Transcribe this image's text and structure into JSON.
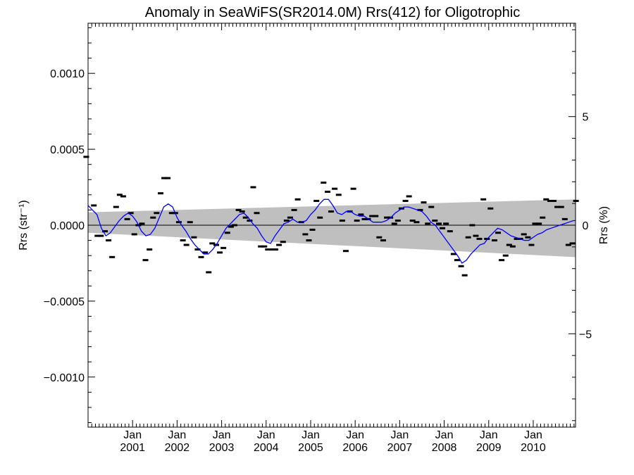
{
  "chart_data": {
    "type": "scatter",
    "title": "Anomaly in SeaWiFS(SR2014.0M) Rrs(412) for Oligotrophic",
    "ylabel_left": "Rrs (str⁻¹)",
    "ylabel_right": "Rrs (%)",
    "xlim": [
      2000.0,
      2010.95
    ],
    "ylim": [
      -0.00133,
      0.00133
    ],
    "ylim_right": [
      -9.3,
      9.3
    ],
    "yticks_left": [
      {
        "value": 0.001,
        "label": "0.0010"
      },
      {
        "value": 0.0005,
        "label": "0.0005"
      },
      {
        "value": 0.0,
        "label": "0.0000"
      },
      {
        "value": -0.0005,
        "label": "−0.0005"
      },
      {
        "value": -0.001,
        "label": "−0.0010"
      }
    ],
    "yticks_right": [
      {
        "value": 5,
        "label": "5"
      },
      {
        "value": 0,
        "label": "0"
      },
      {
        "value": -5,
        "label": "−5"
      }
    ],
    "xticks": [
      {
        "value": 2001,
        "label": "Jan",
        "year": "2001"
      },
      {
        "value": 2002,
        "label": "Jan",
        "year": "2002"
      },
      {
        "value": 2003,
        "label": "Jan",
        "year": "2003"
      },
      {
        "value": 2004,
        "label": "Jan",
        "year": "2004"
      },
      {
        "value": 2005,
        "label": "Jan",
        "year": "2005"
      },
      {
        "value": 2006,
        "label": "Jan",
        "year": "2006"
      },
      {
        "value": 2007,
        "label": "Jan",
        "year": "2007"
      },
      {
        "value": 2008,
        "label": "Jan",
        "year": "2008"
      },
      {
        "value": 2009,
        "label": "Jan",
        "year": "2009"
      },
      {
        "value": 2010,
        "label": "Jan",
        "year": "2010"
      }
    ],
    "zero_line": 0.0,
    "uncertainty_band": {
      "color": "#bfbfbf",
      "upper": [
        [
          2000.0,
          8.5e-05
        ],
        [
          2010.95,
          0.00017
        ]
      ],
      "lower": [
        [
          2000.0,
          -5e-05
        ],
        [
          2010.95,
          -0.00021
        ]
      ]
    },
    "series": [
      {
        "kind": "monthly_anomaly",
        "marker": "dash",
        "color": "#000000",
        "x": [
          1999.96,
          2000.13,
          2000.21,
          2000.29,
          2000.38,
          2000.46,
          2000.54,
          2000.63,
          2000.71,
          2000.79,
          2000.88,
          2000.96,
          2001.04,
          2001.13,
          2001.21,
          2001.29,
          2001.38,
          2001.46,
          2001.54,
          2001.63,
          2001.71,
          2001.79,
          2001.88,
          2001.96,
          2002.04,
          2002.13,
          2002.21,
          2002.29,
          2002.38,
          2002.46,
          2002.54,
          2002.63,
          2002.71,
          2002.79,
          2002.88,
          2002.96,
          2003.04,
          2003.13,
          2003.21,
          2003.29,
          2003.38,
          2003.46,
          2003.54,
          2003.63,
          2003.71,
          2003.79,
          2003.88,
          2003.96,
          2004.04,
          2004.13,
          2004.21,
          2004.29,
          2004.38,
          2004.46,
          2004.54,
          2004.63,
          2004.71,
          2004.79,
          2004.88,
          2004.96,
          2005.04,
          2005.13,
          2005.21,
          2005.29,
          2005.38,
          2005.46,
          2005.54,
          2005.63,
          2005.71,
          2005.79,
          2005.88,
          2005.96,
          2006.04,
          2006.13,
          2006.21,
          2006.29,
          2006.38,
          2006.46,
          2006.54,
          2006.63,
          2006.71,
          2006.79,
          2006.88,
          2006.96,
          2007.04,
          2007.13,
          2007.21,
          2007.29,
          2007.38,
          2007.46,
          2007.54,
          2007.63,
          2007.71,
          2007.79,
          2007.88,
          2007.96,
          2008.04,
          2008.13,
          2008.21,
          2008.29,
          2008.38,
          2008.46,
          2008.54,
          2008.63,
          2008.71,
          2008.79,
          2008.88,
          2008.96,
          2009.04,
          2009.13,
          2009.21,
          2009.29,
          2009.38,
          2009.46,
          2009.54,
          2009.63,
          2009.71,
          2009.79,
          2009.88,
          2009.96,
          2010.04,
          2010.13,
          2010.21,
          2010.29,
          2010.38,
          2010.46,
          2010.54,
          2010.63,
          2010.71,
          2010.79,
          2010.88,
          2010.96
        ],
        "y": [
          0.00045,
          0.00013,
          -7e-05,
          -7e-05,
          -4e-05,
          -0.0001,
          -0.00021,
          0.00012,
          0.0002,
          0.00019,
          4e-05,
          8e-05,
          -6e-05,
          0.0,
          1e-05,
          -0.00023,
          -0.00016,
          5e-05,
          8e-05,
          0.00021,
          0.00031,
          0.00031,
          8e-05,
          8e-05,
          2e-05,
          -0.0001,
          -0.00013,
          2e-05,
          -8e-05,
          -0.00016,
          -0.00021,
          -0.00018,
          -0.00031,
          -0.00012,
          -0.00013,
          -0.00018,
          -0.00015,
          -5e-05,
          -1e-05,
          0.0,
          0.0001,
          9e-05,
          5e-05,
          3e-05,
          0.00025,
          8e-05,
          -0.00014,
          -0.00014,
          -0.00016,
          -0.00016,
          -0.00016,
          -0.00013,
          -0.00011,
          3e-05,
          5e-05,
          0.0001,
          0.00017,
          2e-05,
          -6e-05,
          -0.0001,
          -3e-05,
          0.00016,
          5e-05,
          0.00028,
          0.00022,
          9e-05,
          0.00024,
          0.0002,
          3e-05,
          -0.00017,
          9e-05,
          0.00024,
          3e-05,
          7e-05,
          4e-05,
          4e-05,
          6e-05,
          6e-05,
          -8e-05,
          -0.0001,
          5e-05,
          5e-05,
          1e-05,
          3e-05,
          0.00011,
          0.00016,
          0.00019,
          3e-05,
          2e-05,
          0.0001,
          0.00015,
          1e-05,
          0.00012,
          3e-05,
          1e-05,
          -2e-05,
          1e-05,
          -4e-05,
          -0.00019,
          -0.00023,
          -0.00027,
          -0.00033,
          -8e-05,
          0.0,
          -7e-05,
          -9e-05,
          0.00017,
          -9e-05,
          0.00011,
          -0.0001,
          -5e-05,
          -0.00023,
          -0.0002,
          -0.00013,
          -0.00014,
          -9e-05,
          -9e-05,
          -6e-05,
          -8e-05,
          -0.00013,
          1e-05,
          1e-05,
          5e-05,
          0.00017,
          0.00016,
          0.00016,
          0.00012,
          0.00012,
          4e-05,
          -0.00013,
          -0.00012,
          0.00016
        ]
      },
      {
        "kind": "smoothed",
        "color": "#0000ff",
        "x": [
          2000.0,
          2000.1,
          2000.2,
          2000.3,
          2000.4,
          2000.5,
          2000.6,
          2000.7,
          2000.8,
          2000.9,
          2001.0,
          2001.1,
          2001.2,
          2001.3,
          2001.4,
          2001.5,
          2001.6,
          2001.7,
          2001.8,
          2001.9,
          2002.0,
          2002.1,
          2002.2,
          2002.3,
          2002.4,
          2002.5,
          2002.6,
          2002.7,
          2002.8,
          2002.9,
          2003.0,
          2003.1,
          2003.2,
          2003.3,
          2003.4,
          2003.5,
          2003.6,
          2003.7,
          2003.8,
          2003.9,
          2004.0,
          2004.1,
          2004.2,
          2004.3,
          2004.4,
          2004.5,
          2004.6,
          2004.7,
          2004.8,
          2004.9,
          2005.0,
          2005.1,
          2005.2,
          2005.3,
          2005.4,
          2005.5,
          2005.6,
          2005.7,
          2005.8,
          2005.9,
          2006.0,
          2006.1,
          2006.2,
          2006.3,
          2006.4,
          2006.5,
          2006.6,
          2006.7,
          2006.8,
          2006.9,
          2007.0,
          2007.1,
          2007.2,
          2007.3,
          2007.4,
          2007.5,
          2007.6,
          2007.7,
          2007.8,
          2007.9,
          2008.0,
          2008.1,
          2008.2,
          2008.3,
          2008.4,
          2008.5,
          2008.6,
          2008.7,
          2008.8,
          2008.9,
          2009.0,
          2009.1,
          2009.2,
          2009.3,
          2009.4,
          2009.5,
          2009.6,
          2009.7,
          2009.8,
          2009.9,
          2010.0,
          2010.1,
          2010.2,
          2010.3,
          2010.4,
          2010.5,
          2010.6,
          2010.7,
          2010.8,
          2010.9,
          2010.95
        ],
        "y": [
          0.00013,
          0.0001,
          7e-05,
          -2e-05,
          -7e-05,
          -5e-05,
          -1e-05,
          3e-05,
          6e-05,
          8e-05,
          6e-05,
          2e-05,
          -4e-05,
          -7e-05,
          -6e-05,
          -2e-05,
          5e-05,
          0.00012,
          0.00014,
          0.00012,
          5e-05,
          0.0,
          -4e-05,
          -9e-05,
          -0.00013,
          -0.00016,
          -0.00019,
          -0.00019,
          -0.00016,
          -0.00012,
          -7e-05,
          -2e-05,
          1e-05,
          4e-05,
          7e-05,
          8e-05,
          5e-05,
          1e-05,
          -2e-05,
          -7e-05,
          -0.00011,
          -0.00012,
          -7e-05,
          -3e-05,
          1e-05,
          2e-05,
          4e-05,
          2e-05,
          2e-05,
          3e-05,
          7e-05,
          0.0001,
          0.00014,
          0.00017,
          0.00017,
          0.00013,
          8e-05,
          7e-05,
          9e-05,
          9e-05,
          7e-05,
          6e-05,
          6e-05,
          4e-05,
          2e-05,
          2e-05,
          2e-05,
          3e-05,
          5e-05,
          8e-05,
          0.0001,
          0.00012,
          0.00012,
          0.00011,
          0.0001,
          9e-05,
          6e-05,
          2e-05,
          0.0,
          -4e-05,
          -8e-05,
          -0.00012,
          -0.00016,
          -0.0002,
          -0.00025,
          -0.00023,
          -0.00019,
          -0.00016,
          -0.00013,
          -0.00012,
          -8e-05,
          -5e-05,
          -2e-05,
          -3e-05,
          -5e-05,
          -7e-05,
          -8e-05,
          -9e-05,
          -0.0001,
          -0.0001,
          -8e-05,
          -6e-05,
          -5e-05,
          -3e-05,
          -2e-05,
          -1e-05,
          0.0,
          1e-05,
          2e-05,
          3e-05,
          3e-05
        ]
      }
    ]
  }
}
